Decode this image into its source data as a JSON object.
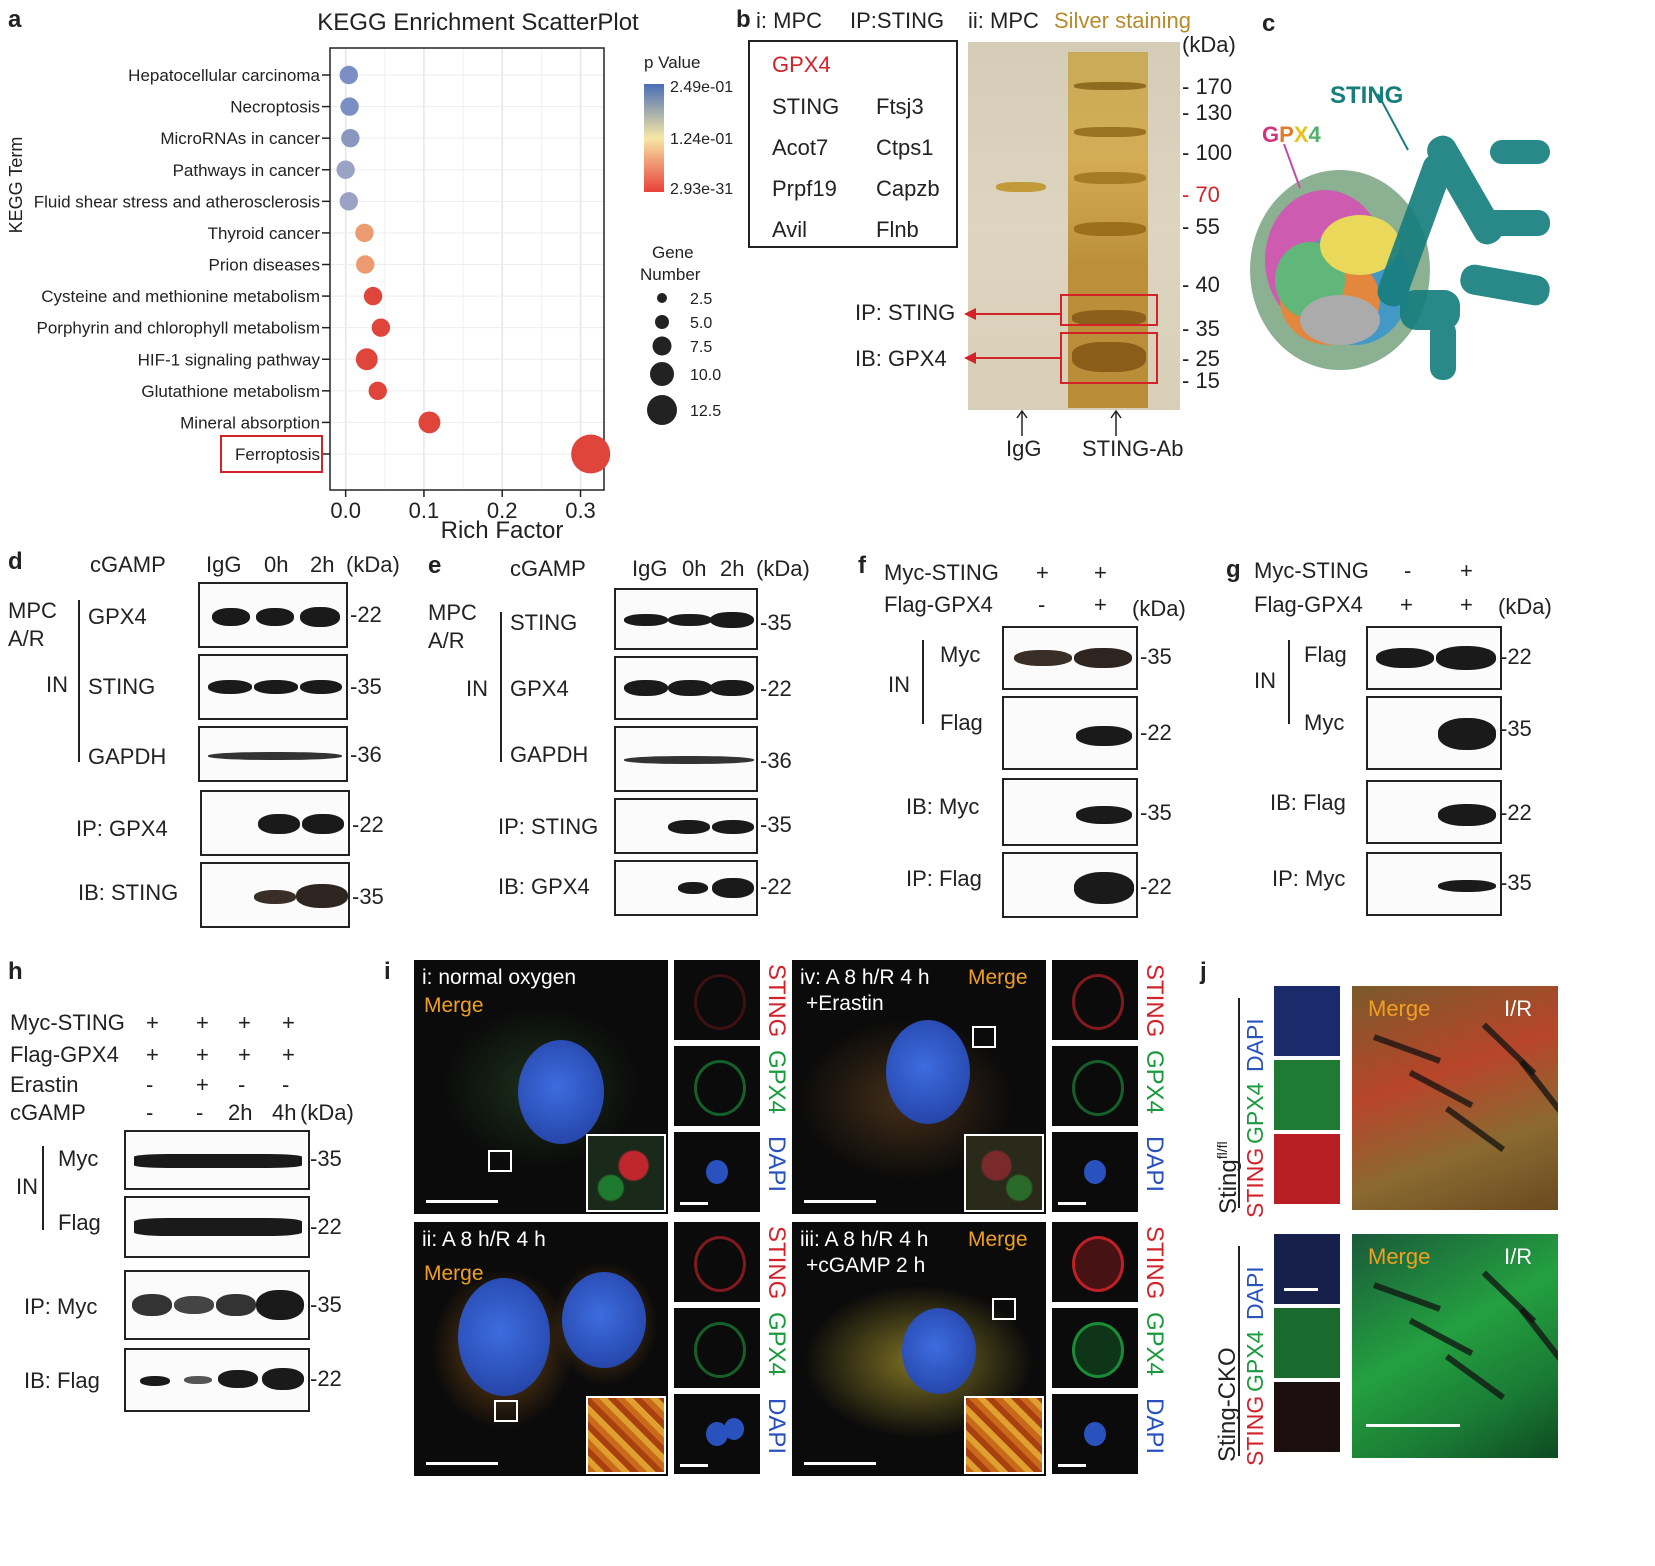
{
  "panel_labels": {
    "a": "a",
    "b": "b",
    "c": "c",
    "d": "d",
    "e": "e",
    "f": "f",
    "g": "g",
    "h": "h",
    "i": "i",
    "j": "j"
  },
  "chart_data": {
    "type": "scatter",
    "title": "KEGG Enrichment ScatterPlot",
    "xlabel": "Rich Factor",
    "ylabel": "KEGG Term",
    "xlim": [
      -0.02,
      0.33
    ],
    "x_ticks": [
      "0.0",
      "0.1",
      "0.2",
      "0.3"
    ],
    "x_tick_values": [
      0.0,
      0.1,
      0.2,
      0.3
    ],
    "grid": true,
    "legend_position": "right",
    "points": [
      {
        "term": "Hepatocellular carcinoma",
        "x": 0.004,
        "gene_number": 1,
        "p_value": 0.249
      },
      {
        "term": "Necroptosis",
        "x": 0.005,
        "gene_number": 1,
        "p_value": 0.24
      },
      {
        "term": "MicroRNAs in cancer",
        "x": 0.006,
        "gene_number": 1,
        "p_value": 0.22
      },
      {
        "term": "Pathways in  cancer",
        "x": 0.0,
        "gene_number": 1,
        "p_value": 0.21
      },
      {
        "term": "Fluid shear stress and atherosclerosis",
        "x": 0.004,
        "gene_number": 1,
        "p_value": 0.2
      },
      {
        "term": "Thyroid cancer",
        "x": 0.024,
        "gene_number": 1,
        "p_value": 0.08
      },
      {
        "term": "Prion diseases",
        "x": 0.025,
        "gene_number": 1,
        "p_value": 0.075
      },
      {
        "term": "Cysteine and methionine metabolism",
        "x": 0.035,
        "gene_number": 1,
        "p_value": 0.035
      },
      {
        "term": "Porphyrin and chlorophyll metabolism",
        "x": 0.045,
        "gene_number": 1,
        "p_value": 0.02
      },
      {
        "term": "HIF-1 signaling pathway",
        "x": 0.027,
        "gene_number": 2,
        "p_value": 0.02
      },
      {
        "term": "Glutathione metabolism",
        "x": 0.041,
        "gene_number": 1,
        "p_value": 0.018
      },
      {
        "term": "Mineral absorption",
        "x": 0.107,
        "gene_number": 2,
        "p_value": 0.005
      },
      {
        "term": "Ferroptosis",
        "x": 0.313,
        "gene_number": 12,
        "p_value": 2.93e-31
      }
    ],
    "legend_color": {
      "title": "p Value",
      "labels": [
        "2.49e-01",
        "1.24e-01",
        "2.93e-31"
      ]
    },
    "legend_size": {
      "title_line1": "Gene",
      "title_line2": "Number",
      "labels": [
        "2.5",
        "5.0",
        "7.5",
        "10.0",
        "12.5"
      ],
      "values": [
        2.5,
        5.0,
        7.5,
        10.0,
        12.5
      ]
    },
    "colors": {
      "low_p": "#e8413a",
      "mid_p": "#f7e7a6",
      "high_p": "#4a6fb5"
    }
  },
  "panel_b": {
    "title_i": "i: MPC",
    "title_ip": "IP:STING",
    "title_ii_prefix": "ii: MPC",
    "title_ii_stain": "Silver staining",
    "box_highlight": "GPX4",
    "proteins_left": [
      "STING",
      "Acot7",
      "Prpf19",
      "Avil"
    ],
    "proteins_right": [
      "Ftsj3",
      "Ctps1",
      "Capzb",
      "Flnb"
    ],
    "kda_label": "(kDa)",
    "markers": [
      "170",
      "130",
      "100",
      "70",
      "55",
      "40",
      "35",
      "25",
      "15"
    ],
    "marker_highlight": "70",
    "ip_label": "IP: STING",
    "ib_label": "IB: GPX4",
    "lane_labels": [
      "IgG",
      "STING-Ab"
    ],
    "colors": {
      "red": "#d2232a",
      "stain": "#c9a14a"
    }
  },
  "panel_c": {
    "sting": "STING",
    "gpx4_letters": [
      "G",
      "P",
      "X",
      "4"
    ],
    "colors": {
      "sting": "#1b8c8c"
    }
  },
  "panel_d": {
    "treatment": "cGAMP",
    "lanes": [
      "IgG",
      "0h",
      "2h"
    ],
    "kda": "(kDa)",
    "cell_label_1": "MPC",
    "cell_label_2": "A/R",
    "input": "IN",
    "rows": [
      {
        "label": "GPX4",
        "kda": "-22"
      },
      {
        "label": "STING",
        "kda": "-35"
      },
      {
        "label": "GAPDH",
        "kda": "-36"
      },
      {
        "label": "IP: GPX4",
        "kda": "-22"
      },
      {
        "label": "IB: STING",
        "kda": "-35"
      }
    ]
  },
  "panel_e": {
    "treatment": "cGAMP",
    "lanes": [
      "IgG",
      "0h",
      "2h"
    ],
    "kda": "(kDa)",
    "cell_label_1": "MPC",
    "cell_label_2": "A/R",
    "input": "IN",
    "rows": [
      {
        "label": "STING",
        "kda": "-35"
      },
      {
        "label": "GPX4",
        "kda": "-22"
      },
      {
        "label": "GAPDH",
        "kda": "-36"
      },
      {
        "label": "IP: STING",
        "kda": "-35"
      },
      {
        "label": "IB: GPX4",
        "kda": "-22"
      }
    ]
  },
  "panel_f": {
    "cond_1": "Myc-STING",
    "cond_1_signs": [
      "+",
      "+"
    ],
    "cond_2": "Flag-GPX4",
    "cond_2_signs": [
      "-",
      "+"
    ],
    "kda": "(kDa)",
    "input": "IN",
    "rows": [
      {
        "label": "Myc",
        "kda": "-35"
      },
      {
        "label": "Flag",
        "kda": "-22"
      },
      {
        "label": "IB: Myc",
        "kda": "-35"
      },
      {
        "label": "IP: Flag",
        "kda": "-22"
      }
    ]
  },
  "panel_g": {
    "cond_1": "Myc-STING",
    "cond_1_signs": [
      "-",
      "+"
    ],
    "cond_2": "Flag-GPX4",
    "cond_2_signs": [
      "+",
      "+"
    ],
    "kda": "(kDa)",
    "input": "IN",
    "rows": [
      {
        "label": "Flag",
        "kda": "-22"
      },
      {
        "label": "Myc",
        "kda": "-35"
      },
      {
        "label": "IB: Flag",
        "kda": "-22"
      },
      {
        "label": "IP: Myc",
        "kda": "-35"
      }
    ]
  },
  "panel_h": {
    "conds": [
      {
        "label": "Myc-STING",
        "signs": [
          "+",
          "+",
          "+",
          "+"
        ]
      },
      {
        "label": "Flag-GPX4",
        "signs": [
          "+",
          "+",
          "+",
          "+"
        ]
      },
      {
        "label": "Erastin",
        "signs": [
          "-",
          "+",
          "-",
          "-"
        ]
      },
      {
        "label": "cGAMP",
        "signs": [
          "-",
          "-",
          "2h",
          "4h"
        ]
      }
    ],
    "kda": "(kDa)",
    "input": "IN",
    "rows": [
      {
        "label": "Myc",
        "kda": "-35"
      },
      {
        "label": "Flag",
        "kda": "-22"
      },
      {
        "label": "IP: Myc",
        "kda": "-35"
      },
      {
        "label": "IB: Flag",
        "kda": "-22"
      }
    ]
  },
  "panel_i": {
    "quadrants": [
      {
        "line1": "i: normal oxygen",
        "line2": "",
        "merge": "Merge"
      },
      {
        "line1": "iv: A 8 h/R 4 h",
        "line2": "+Erastin",
        "merge": "Merge"
      },
      {
        "line1": "ii: A 8 h/R 4 h",
        "line2": "",
        "merge": "Merge"
      },
      {
        "line1": "iii: A 8 h/R 4 h",
        "line2": "+cGAMP 2 h",
        "merge": "Merge"
      }
    ],
    "channels": [
      "STING",
      "GPX4",
      "DAPI"
    ],
    "colors": {
      "sting": "#d2232a",
      "gpx4": "#1a9a3c",
      "dapi": "#2a52be",
      "merge": "#f0a020"
    }
  },
  "panel_j": {
    "groups": [
      {
        "genotype": "Sting",
        "superscript": "fl/fl",
        "merge": "Merge",
        "condition": "I/R"
      },
      {
        "genotype": "Sting-CKO",
        "superscript": "",
        "merge": "Merge",
        "condition": "I/R"
      }
    ],
    "channels": [
      "STING",
      "GPX4",
      "DAPI"
    ]
  }
}
